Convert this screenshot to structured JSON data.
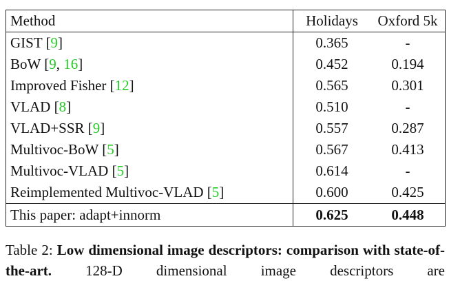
{
  "table": {
    "header": [
      "Method",
      "Holidays",
      "Oxford 5k"
    ],
    "rows": [
      {
        "method": [
          "GIST [",
          {
            "text": "9",
            "link": true
          },
          "]"
        ],
        "holidays": "0.365",
        "oxford": "-"
      },
      {
        "method": [
          "BoW [",
          {
            "text": "9",
            "link": true
          },
          ", ",
          {
            "text": "16",
            "link": true
          },
          "]"
        ],
        "holidays": "0.452",
        "oxford": "0.194"
      },
      {
        "method": [
          "Improved Fisher [",
          {
            "text": "12",
            "link": true
          },
          "]"
        ],
        "holidays": "0.565",
        "oxford": "0.301"
      },
      {
        "method": [
          "VLAD [",
          {
            "text": "8",
            "link": true
          },
          "]"
        ],
        "holidays": "0.510",
        "oxford": "-"
      },
      {
        "method": [
          "VLAD+SSR [",
          {
            "text": "9",
            "link": true
          },
          "]"
        ],
        "holidays": "0.557",
        "oxford": "0.287"
      },
      {
        "method": [
          "Multivoc-BoW [",
          {
            "text": "5",
            "link": true
          },
          "]"
        ],
        "holidays": "0.567",
        "oxford": "0.413"
      },
      {
        "method": [
          "Multivoc-VLAD [",
          {
            "text": "5",
            "link": true
          },
          "]"
        ],
        "holidays": "0.614",
        "oxford": "-"
      },
      {
        "method": [
          "Reimplemented Multivoc-VLAD [",
          {
            "text": "5",
            "link": true
          },
          "]"
        ],
        "holidays": "0.600",
        "oxford": "0.425"
      }
    ],
    "final_row": {
      "method": "This paper: adapt+innorm",
      "holidays": "0.625",
      "oxford": "0.448"
    }
  },
  "caption": {
    "label": "Table 2:",
    "bold": "Low dimensional image descriptors: comparison with state-of-the-art.",
    "text": "128-D dimensional image descriptors are"
  }
}
